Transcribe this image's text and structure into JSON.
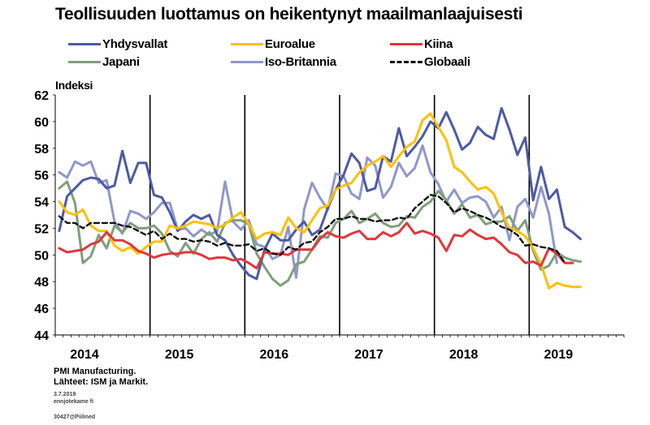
{
  "title": "Teollisuuden luottamus on heikentynyt maailmanlaajuisesti",
  "source": {
    "line1": "PMI Manufacturing.",
    "line2": "Lähteet: ISM ja Markit.",
    "date": "3.7.2019",
    "group": "ennjotekame fi",
    "id": "30427@Piilined"
  },
  "chart_data": {
    "type": "line",
    "title": "Teollisuuden luottamus on heikentynyt maailmanlaajuisesti",
    "ylabel": "Indeksi",
    "xlabel": "",
    "ylim": [
      44,
      62
    ],
    "yticks": [
      44,
      46,
      48,
      50,
      52,
      54,
      56,
      58,
      60,
      62
    ],
    "x_tick_labels": [
      "2014",
      "2015",
      "2016",
      "2017",
      "2018",
      "2019"
    ],
    "x_start": "2014-01",
    "x_end": "2019-12",
    "year_gridlines": [
      2015,
      2016,
      2017,
      2018,
      2019
    ],
    "grid": "vertical year lines",
    "legend_position": "top",
    "series": [
      {
        "name": "Yhdysvallat",
        "color": "#4c5aa6",
        "dash": "",
        "values": [
          51.8,
          54.4,
          55.0,
          55.6,
          55.8,
          55.7,
          55.0,
          55.2,
          57.8,
          55.4,
          56.9,
          56.9,
          54.5,
          54.3,
          53.2,
          51.8,
          52.5,
          53.0,
          52.7,
          53.0,
          51.5,
          51.1,
          50.0,
          49.2,
          48.5,
          48.2,
          50.4,
          51.6,
          51.1,
          51.1,
          51.9,
          52.5,
          51.5,
          51.9,
          53.5,
          54.9,
          56.0,
          57.6,
          56.9,
          54.8,
          55.0,
          57.4,
          57.0,
          59.5,
          57.4,
          58.1,
          58.9,
          60.0,
          59.5,
          60.7,
          59.4,
          57.9,
          58.4,
          59.6,
          59.0,
          58.7,
          61.0,
          59.4,
          57.5,
          58.8,
          54.1,
          56.6,
          54.2,
          54.9,
          52.1,
          51.7,
          51.2
        ]
      },
      {
        "name": "Euroalue",
        "color": "#ffc000",
        "dash": "",
        "values": [
          54.0,
          53.2,
          53.0,
          53.4,
          52.2,
          51.8,
          51.8,
          50.7,
          50.3,
          50.6,
          50.1,
          50.6,
          51.0,
          51.0,
          52.2,
          52.0,
          52.2,
          52.5,
          52.4,
          52.3,
          52.0,
          52.3,
          52.8,
          53.2,
          52.3,
          51.2,
          51.6,
          51.7,
          51.5,
          52.8,
          52.0,
          51.7,
          52.6,
          53.5,
          53.7,
          54.9,
          55.2,
          55.4,
          56.2,
          56.7,
          57.0,
          57.4,
          56.6,
          57.4,
          58.1,
          58.5,
          60.1,
          60.6,
          59.6,
          58.6,
          56.6,
          56.2,
          55.5,
          54.9,
          55.1,
          54.6,
          53.2,
          52.0,
          51.8,
          51.4,
          50.5,
          49.3,
          47.5,
          47.9,
          47.7,
          47.6,
          47.6
        ]
      },
      {
        "name": "Kiina",
        "color": "#e1373c",
        "dash": "",
        "values": [
          50.5,
          50.2,
          50.3,
          50.4,
          50.8,
          51.0,
          51.7,
          51.1,
          51.1,
          50.8,
          50.3,
          50.1,
          49.8,
          50.0,
          50.1,
          50.1,
          50.2,
          50.2,
          50.0,
          49.7,
          49.8,
          49.8,
          49.6,
          49.7,
          49.4,
          49.0,
          50.2,
          50.1,
          50.1,
          50.0,
          50.4,
          50.4,
          50.4,
          51.2,
          51.7,
          51.4,
          51.3,
          51.6,
          51.8,
          51.2,
          51.2,
          51.7,
          51.4,
          51.7,
          52.4,
          51.6,
          51.8,
          51.6,
          51.3,
          50.3,
          51.5,
          51.4,
          51.9,
          51.5,
          51.2,
          51.3,
          50.8,
          50.2,
          50.0,
          49.4,
          49.5,
          49.2,
          50.5,
          50.1,
          49.4,
          49.4
        ]
      },
      {
        "name": "Japani",
        "color": "#7f9f7a",
        "dash": "",
        "values": [
          55.0,
          55.5,
          53.9,
          49.4,
          49.9,
          51.5,
          50.5,
          52.2,
          51.7,
          52.4,
          52.0,
          52.0,
          52.2,
          51.6,
          50.3,
          49.9,
          50.9,
          50.1,
          51.2,
          51.7,
          51.0,
          52.4,
          52.6,
          52.6,
          52.3,
          50.1,
          49.1,
          48.2,
          47.7,
          48.1,
          49.3,
          49.5,
          50.4,
          51.4,
          51.3,
          52.4,
          52.7,
          53.3,
          52.4,
          52.7,
          53.1,
          52.4,
          52.1,
          52.2,
          52.9,
          52.8,
          53.6,
          54.0,
          54.8,
          54.1,
          53.1,
          53.8,
          52.8,
          53.0,
          52.3,
          52.5,
          52.5,
          52.9,
          51.8,
          52.6,
          50.3,
          48.9,
          49.2,
          50.2,
          49.8,
          49.6,
          49.5
        ]
      },
      {
        "name": "Iso-Britannia",
        "color": "#8f97cc",
        "dash": "",
        "values": [
          56.2,
          55.8,
          57.0,
          56.7,
          57.0,
          55.4,
          55.6,
          52.5,
          51.6,
          53.3,
          53.1,
          52.7,
          53.2,
          53.9,
          53.9,
          51.9,
          52.0,
          51.4,
          51.9,
          51.5,
          51.8,
          55.5,
          52.5,
          51.9,
          52.6,
          50.8,
          50.6,
          49.7,
          50.0,
          52.1,
          48.3,
          53.4,
          55.4,
          54.3,
          53.4,
          56.1,
          55.9,
          54.6,
          54.2,
          57.3,
          56.7,
          54.3,
          55.1,
          56.9,
          55.9,
          56.5,
          58.2,
          56.2,
          55.3,
          54.0,
          54.9,
          53.9,
          54.3,
          54.4,
          54.0,
          52.8,
          53.6,
          51.1,
          53.6,
          54.2,
          52.8,
          55.1,
          53.1,
          49.4
        ]
      },
      {
        "name": "Globaali",
        "color": "#111111",
        "dash": "6,4",
        "values": [
          52.9,
          52.4,
          52.4,
          52.0,
          52.4,
          52.4,
          52.4,
          52.4,
          52.2,
          52.1,
          51.8,
          51.5,
          51.8,
          51.2,
          51.6,
          51.2,
          51.2,
          51.0,
          51.1,
          51.0,
          50.7,
          50.9,
          50.7,
          50.7,
          50.8,
          50.3,
          50.5,
          50.1,
          50.0,
          50.6,
          50.4,
          50.9,
          51.0,
          51.7,
          52.1,
          52.7,
          52.7,
          52.9,
          52.7,
          52.7,
          52.5,
          52.6,
          52.6,
          52.8,
          52.7,
          53.5,
          54.0,
          54.5,
          54.4,
          53.9,
          53.2,
          53.5,
          53.3,
          53.0,
          52.8,
          52.5,
          52.1,
          51.9,
          51.5,
          50.7,
          50.8,
          50.6,
          50.5,
          50.3,
          49.4
        ]
      }
    ]
  }
}
